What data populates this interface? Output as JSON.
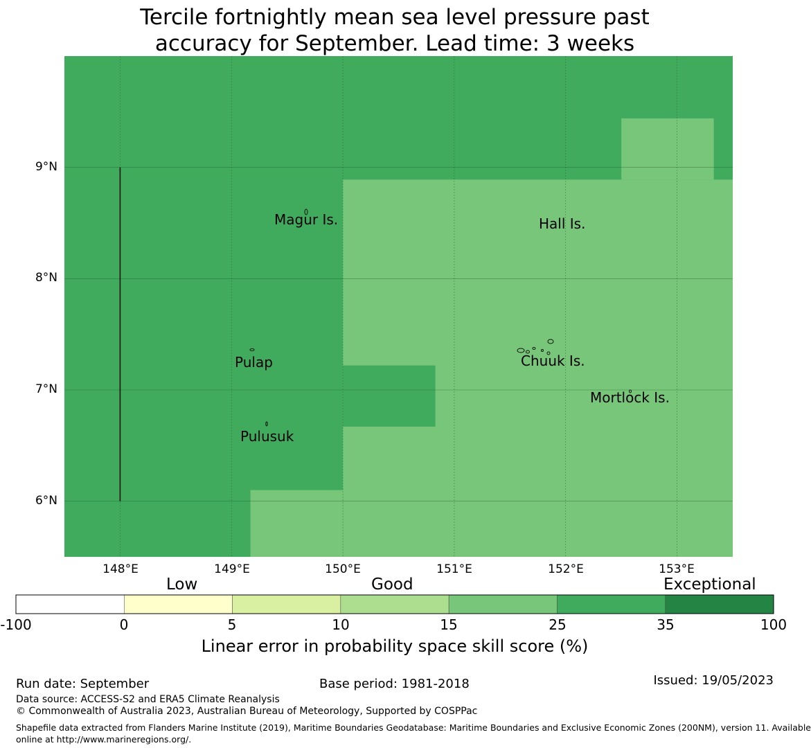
{
  "title": {
    "line1": "Tercile fortnightly mean sea level pressure past",
    "line2": "accuracy for September. Lead time: 3 weeks"
  },
  "map": {
    "lon_range": [
      147.5,
      153.5
    ],
    "lat_range": [
      5.5,
      10.0
    ],
    "lon_ticks": [
      {
        "value": 148,
        "label": "148°E"
      },
      {
        "value": 149,
        "label": "149°E"
      },
      {
        "value": 150,
        "label": "150°E"
      },
      {
        "value": 151,
        "label": "151°E"
      },
      {
        "value": 152,
        "label": "152°E"
      },
      {
        "value": 153,
        "label": "153°E"
      }
    ],
    "lat_ticks": [
      {
        "value": 9,
        "label": "9°N"
      },
      {
        "value": 8,
        "label": "8°N"
      },
      {
        "value": 7,
        "label": "7°N"
      },
      {
        "value": 6,
        "label": "6°N"
      }
    ],
    "background_category": "25-35",
    "regions": [
      {
        "category": "15-25",
        "lon": [
          150.0,
          153.5
        ],
        "lat": [
          5.5,
          8.89
        ]
      },
      {
        "category": "15-25",
        "lon": [
          149.17,
          150.0
        ],
        "lat": [
          5.5,
          6.1
        ]
      },
      {
        "category": "15-25",
        "lon": [
          152.5,
          153.33
        ],
        "lat": [
          8.89,
          9.44
        ]
      },
      {
        "category": "25-35",
        "lon": [
          150.0,
          150.83
        ],
        "lat": [
          6.67,
          7.22
        ]
      }
    ],
    "boundary_line": {
      "lon": 148.0,
      "lat": [
        6.0,
        9.0
      ]
    },
    "places": [
      {
        "name": "Magur Is.",
        "lon": 149.65,
        "lat": 8.55
      },
      {
        "name": "Hall Is.",
        "lon": 151.97,
        "lat": 8.5
      },
      {
        "name": "Pulap",
        "lon": 149.2,
        "lat": 7.25
      },
      {
        "name": "Chuuk Is.",
        "lon": 151.9,
        "lat": 7.25
      },
      {
        "name": "Mortlock Is.",
        "lon": 152.58,
        "lat": 6.93
      },
      {
        "name": "Pulusuk",
        "lon": 149.33,
        "lat": 6.58
      }
    ]
  },
  "colorbar": {
    "categories": [
      "Low",
      "Good",
      "Exceptional"
    ],
    "bins": [
      {
        "id": "-100-0",
        "color": "#ffffff"
      },
      {
        "id": "0-5",
        "color": "#ffffcc"
      },
      {
        "id": "5-10",
        "color": "#d9f0a3"
      },
      {
        "id": "10-15",
        "color": "#addd8e"
      },
      {
        "id": "15-25",
        "color": "#78c679"
      },
      {
        "id": "25-35",
        "color": "#41ab5d"
      },
      {
        "id": "35-100",
        "color": "#238443"
      }
    ],
    "tick_labels": [
      "-100",
      "0",
      "5",
      "10",
      "15",
      "25",
      "35",
      "100"
    ],
    "title": "Linear error in probability space skill score (%)"
  },
  "footer": {
    "run_date": "Run date: September",
    "base_period": "Base period: 1981-2018",
    "issued": "Issued: 19/05/2023",
    "data_source": "Data source: ACCESS-S2 and ERA5 Climate Reanalysis",
    "copyright": "© Commonwealth of Australia 2023, Australian Bureau of Meteorology, Supported by COSPPac",
    "shapefile_line1": "Shapefile data extracted from Flanders Marine Institute (2019), Maritime Boundaries Geodatabase: Maritime Boundaries and Exclusive Economic Zones (200NM), version 11. Available",
    "shapefile_line2": "online at http://www.marineregions.org/."
  }
}
